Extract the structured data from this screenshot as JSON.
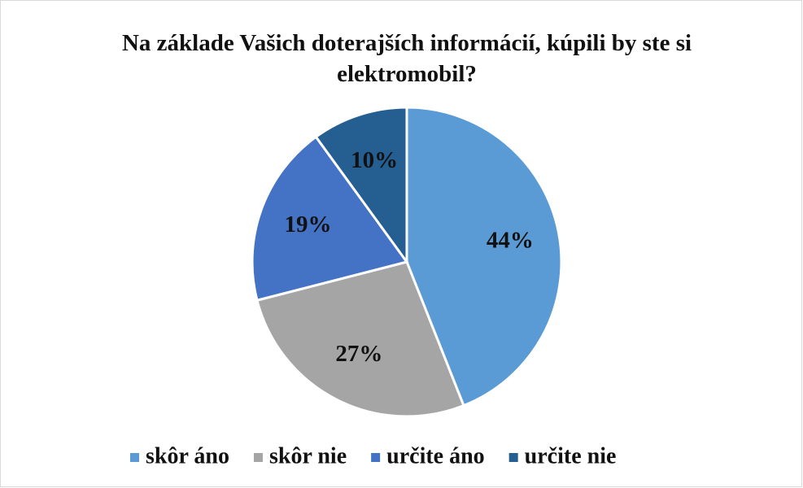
{
  "chart_data": {
    "type": "pie",
    "title": "Na základe Vašich doterajších informácií, kúpili by ste si elektromobil?",
    "categories": [
      "skôr áno",
      "skôr nie",
      "určite áno",
      "určite nie"
    ],
    "values": [
      44,
      27,
      19,
      10
    ],
    "value_labels": [
      "44%",
      "27%",
      "19%",
      "10%"
    ],
    "colors": [
      "#5b9bd5",
      "#a5a5a5",
      "#4472c4",
      "#255e91"
    ],
    "legend": "bottom"
  }
}
